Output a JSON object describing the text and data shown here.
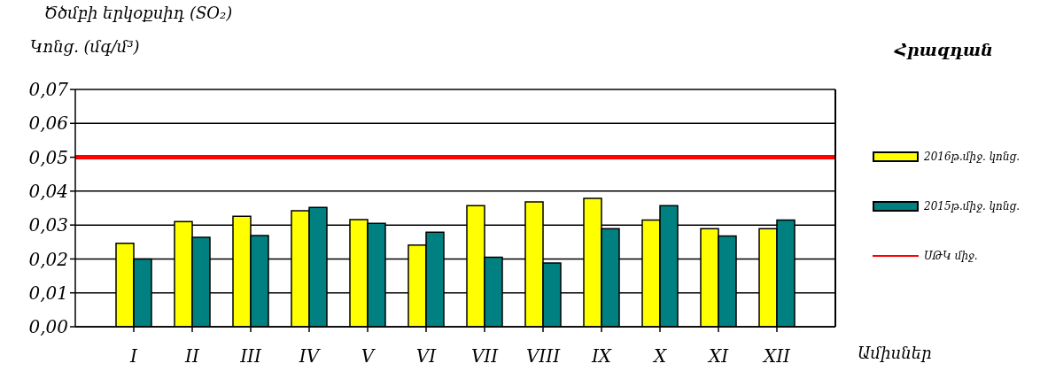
{
  "chart_data": {
    "type": "bar",
    "title": "Ծծմբի երկօքսիդ (SO₂)",
    "ylabel": "Կոնց. (մգ/մ³)",
    "subtitle": "Հրազդան",
    "xlabel": "Ամիսներ",
    "categories": [
      "I",
      "II",
      "III",
      "IV",
      "V",
      "VI",
      "VII",
      "VIII",
      "IX",
      "X",
      "XI",
      "XII"
    ],
    "series": [
      {
        "name": "2016թ.միջ. կոնց.",
        "color": "#ffff00",
        "values": [
          0.0246,
          0.031,
          0.0326,
          0.0342,
          0.0316,
          0.0241,
          0.0357,
          0.0368,
          0.0379,
          0.0315,
          0.0289,
          0.0289
        ]
      },
      {
        "name": "2015թ.միջ. կոնց.",
        "color": "#008080",
        "values": [
          0.02,
          0.0264,
          0.0269,
          0.0352,
          0.0305,
          0.0279,
          0.0205,
          0.0188,
          0.0289,
          0.0357,
          0.0268,
          0.0315
        ]
      }
    ],
    "ref_lines": [
      {
        "axis": "y",
        "value": 0.05,
        "label": "ՍԹԿ միջ.",
        "color": "#ff0000"
      }
    ],
    "ylim": [
      0,
      0.07
    ],
    "yticks": [
      {
        "value": 0,
        "label": "0,00"
      },
      {
        "value": 0.01,
        "label": "0,01"
      },
      {
        "value": 0.02,
        "label": "0,02"
      },
      {
        "value": 0.03,
        "label": "0,03"
      },
      {
        "value": 0.04,
        "label": "0,04"
      },
      {
        "value": 0.05,
        "label": "0,05"
      },
      {
        "value": 0.06,
        "label": "0,06"
      },
      {
        "value": 0.07,
        "label": "0,07"
      }
    ],
    "grid": "y",
    "legend": "right"
  }
}
